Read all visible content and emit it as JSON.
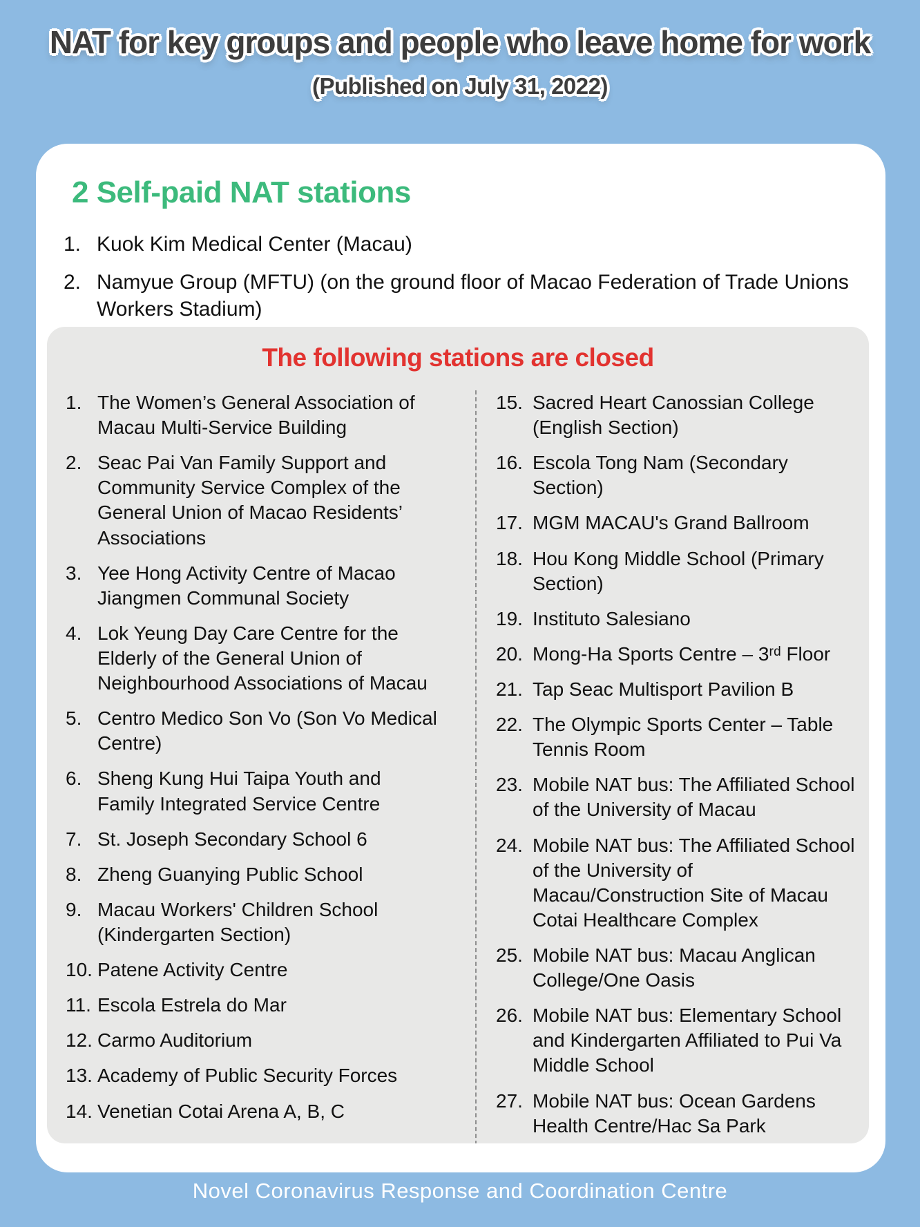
{
  "page": {
    "title": "NAT for key groups and people who leave home for work",
    "subtitle": "(Published on July 31, 2022)",
    "footer": "Novel Coronavirus Response and Coordination Centre"
  },
  "colors": {
    "background_blue": "#8dbae2",
    "card_white": "#ffffff",
    "panel_gray": "#e8e8e7",
    "heading_green": "#3cba7c",
    "heading_red": "#e23330",
    "text_dark": "#111111",
    "divider_gray": "#8f8f8f"
  },
  "self_paid": {
    "heading": "2 Self-paid NAT stations",
    "items": [
      {
        "num": "1.",
        "text": "Kuok Kim Medical Center (Macau)"
      },
      {
        "num": "2.",
        "text": "Namyue Group (MFTU) (on the ground floor of Macao Federation of Trade Unions Workers Stadium)"
      }
    ]
  },
  "closed": {
    "heading": "The following stations are closed",
    "left_items": [
      {
        "num": "1.",
        "text": "The Women’s General Association of Macau Multi-Service Building"
      },
      {
        "num": "2.",
        "text": "Seac Pai Van Family Support and Community Service Complex of the General Union of Macao Residents’ Associations"
      },
      {
        "num": "3.",
        "text": "Yee Hong Activity Centre of Macao Jiangmen Communal Society"
      },
      {
        "num": "4.",
        "text": "Lok Yeung Day Care Centre for the Elderly of the General Union of Neighbourhood Associations of Macau"
      },
      {
        "num": "5.",
        "text": "Centro Medico Son Vo (Son Vo Medical Centre)"
      },
      {
        "num": "6.",
        "text": "Sheng Kung Hui Taipa Youth and Family Integrated Service Centre"
      },
      {
        "num": "7.",
        "text": "St. Joseph Secondary School 6"
      },
      {
        "num": "8.",
        "text": "Zheng Guanying Public School"
      },
      {
        "num": "9.",
        "text": "Macau Workers' Children School (Kindergarten Section)"
      },
      {
        "num": "10.",
        "text": "Patene Activity Centre"
      },
      {
        "num": "11.",
        "text": "Escola Estrela do Mar"
      },
      {
        "num": "12.",
        "text": "Carmo Auditorium"
      },
      {
        "num": "13.",
        "text": "Academy of Public Security Forces"
      },
      {
        "num": "14.",
        "text": "Venetian Cotai Arena A, B, C"
      }
    ],
    "right_items": [
      {
        "num": "15.",
        "text": "Sacred Heart Canossian College (English Section)"
      },
      {
        "num": "16.",
        "text": "Escola Tong Nam (Secondary Section)"
      },
      {
        "num": "17.",
        "text": "MGM MACAU's Grand Ballroom"
      },
      {
        "num": "18.",
        "text": "Hou Kong Middle School (Primary Section)"
      },
      {
        "num": "19.",
        "text": "Instituto Salesiano"
      },
      {
        "num": "20.",
        "text": "Mong-Ha Sports Centre – 3ʳᵈ Floor"
      },
      {
        "num": "21.",
        "text": "Tap Seac Multisport Pavilion B"
      },
      {
        "num": "22.",
        "text": "The Olympic Sports Center –  Table Tennis Room"
      },
      {
        "num": "23.",
        "text": "Mobile NAT bus: The Affiliated School of the University of Macau"
      },
      {
        "num": "24.",
        "text": "Mobile NAT bus: The Affiliated School of the University of Macau/Construction Site of Macau Cotai Healthcare Complex"
      },
      {
        "num": "25.",
        "text": "Mobile NAT bus: Macau Anglican College/One Oasis"
      },
      {
        "num": "26.",
        "text": "Mobile NAT bus: Elementary School and Kindergarten Affiliated to Pui Va Middle School"
      },
      {
        "num": "27.",
        "text": "Mobile NAT bus: Ocean Gardens Health Centre/Hac Sa Park"
      }
    ]
  }
}
